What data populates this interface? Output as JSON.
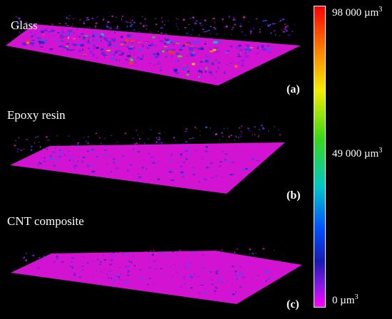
{
  "panels": [
    {
      "title": "Glass",
      "tag": "(a)"
    },
    {
      "title": "Epoxy resin",
      "tag": "(b)"
    },
    {
      "title": "CNT composite",
      "tag": "(c)"
    }
  ],
  "colorbar": {
    "max_label": "98 000 µm",
    "mid_label": "49 000 µm",
    "min_label": "0 µm",
    "exponent": "3",
    "colors": [
      "#ff0000",
      "#ff7a00",
      "#f4ee00",
      "#38d818",
      "#00c8c8",
      "#0050ff",
      "#1a1ab4",
      "#8a18e6",
      "#ff00ff"
    ]
  },
  "surface_color": "#d214d2",
  "background": "#000000"
}
